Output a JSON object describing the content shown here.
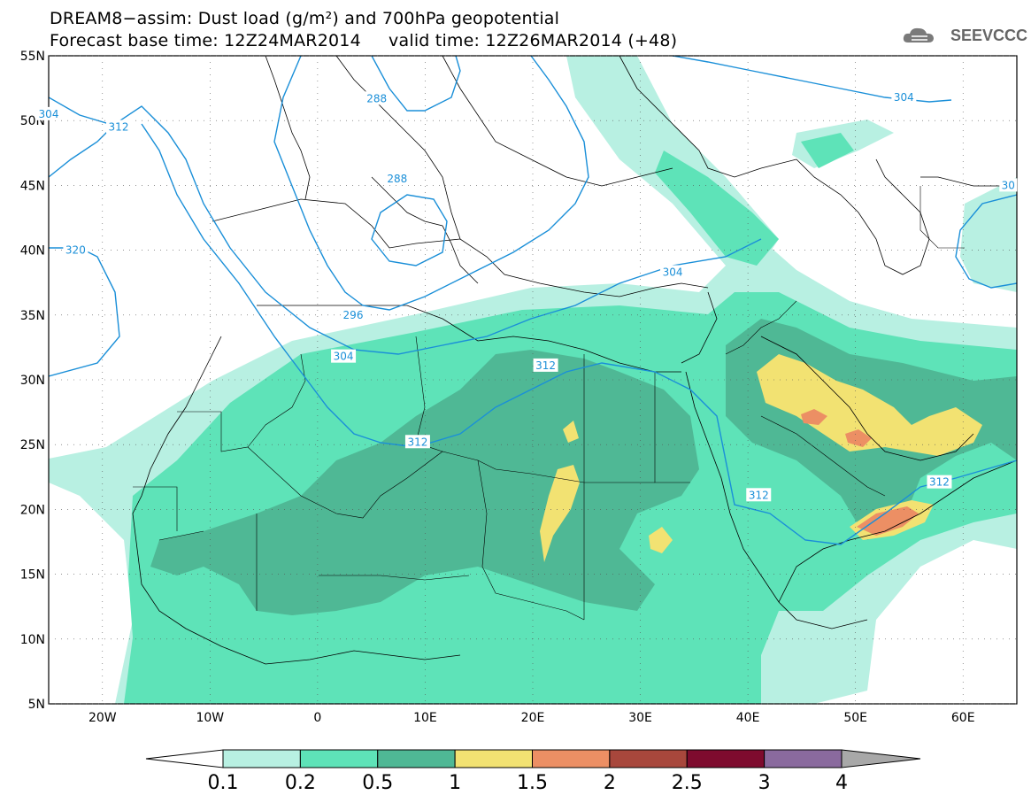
{
  "title": {
    "line1": "DREAM8−assim: Dust load (g/m²) and 700hPa geopotential",
    "line2": "Forecast base time: 12Z24MAR2014     valid time: 12Z26MAR2014 (+48)"
  },
  "logo": {
    "text": "SEEVCCC",
    "icon": "cloud-icon"
  },
  "map": {
    "lon_range": [
      -25,
      65
    ],
    "lat_range": [
      5,
      55
    ],
    "lat_labels": [
      {
        "lat": 55,
        "text": "55N"
      },
      {
        "lat": 50,
        "text": "50N"
      },
      {
        "lat": 45,
        "text": "45N"
      },
      {
        "lat": 40,
        "text": "40N"
      },
      {
        "lat": 35,
        "text": "35N"
      },
      {
        "lat": 30,
        "text": "30N"
      },
      {
        "lat": 25,
        "text": "25N"
      },
      {
        "lat": 20,
        "text": "20N"
      },
      {
        "lat": 15,
        "text": "15N"
      },
      {
        "lat": 10,
        "text": "10N"
      },
      {
        "lat": 5,
        "text": "5N"
      }
    ],
    "lon_labels": [
      {
        "lon": -20,
        "text": "20W"
      },
      {
        "lon": -10,
        "text": "10W"
      },
      {
        "lon": 0,
        "text": "0"
      },
      {
        "lon": 10,
        "text": "10E"
      },
      {
        "lon": 20,
        "text": "20E"
      },
      {
        "lon": 30,
        "text": "30E"
      },
      {
        "lon": 40,
        "text": "40E"
      },
      {
        "lon": 50,
        "text": "50E"
      },
      {
        "lon": 60,
        "text": "60E"
      }
    ],
    "contour_labels": [
      {
        "text": "304",
        "lon": -25,
        "lat": 50.5
      },
      {
        "text": "312",
        "lon": -18.5,
        "lat": 49.5
      },
      {
        "text": "320",
        "lon": -22.5,
        "lat": 40
      },
      {
        "text": "288",
        "lon": 5.5,
        "lat": 51.7
      },
      {
        "text": "288",
        "lon": 7.4,
        "lat": 45.5
      },
      {
        "text": "296",
        "lon": 3.3,
        "lat": 35
      },
      {
        "text": "304",
        "lon": 2.4,
        "lat": 31.8
      },
      {
        "text": "304",
        "lon": 33,
        "lat": 38.3
      },
      {
        "text": "304",
        "lon": 54.5,
        "lat": 51.8
      },
      {
        "text": "312",
        "lon": 9.3,
        "lat": 25.2
      },
      {
        "text": "312",
        "lon": 21.2,
        "lat": 31.1
      },
      {
        "text": "312",
        "lon": 41,
        "lat": 21.1
      },
      {
        "text": "312",
        "lon": 57.8,
        "lat": 22.1
      },
      {
        "text": "30",
        "lon": 64.2,
        "lat": 45
      }
    ]
  },
  "legend": {
    "labels": [
      "0.1",
      "0.2",
      "0.5",
      "1",
      "1.5",
      "2",
      "2.5",
      "3",
      "4"
    ],
    "colors": [
      "#b8f0e2",
      "#5ee3b8",
      "#4fb895",
      "#f2e272",
      "#ec8f64",
      "#a8473c",
      "#7e0b2e",
      "#8a6a9e",
      "#a8a8a8"
    ]
  },
  "colors": {
    "contour": "#1a8fd8",
    "level_0_1": "#b8f0e2",
    "level_0_2": "#5ee3b8",
    "level_0_5": "#4fb895",
    "level_1": "#f2e272",
    "level_1_5": "#ec8f64",
    "level_2": "#a8473c"
  }
}
